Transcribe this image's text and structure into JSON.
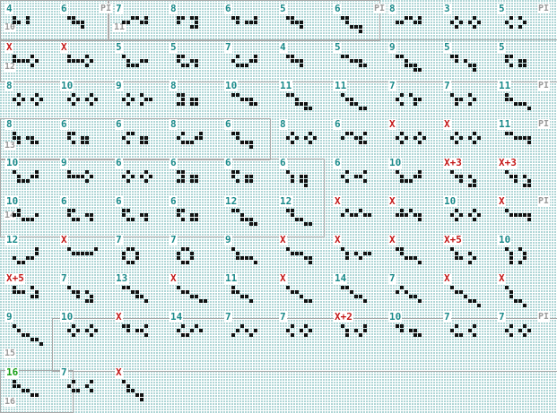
{
  "board": {
    "colors": {
      "teal": "#1a8a8a",
      "red": "#c41818",
      "green": "#17a017",
      "group_border": "#a8a8a8",
      "cell_fill": "#111111",
      "grid_dot": "#3a9a9a"
    },
    "groups": [
      "10",
      "11",
      "12",
      "13",
      "14",
      "15",
      "16"
    ],
    "rows": [
      [
        {
          "label": "4",
          "color": "teal",
          "pattern": "p2"
        },
        {
          "label": "6",
          "color": "teal",
          "pattern": "p1",
          "pl": "PI"
        },
        {
          "label": "7",
          "color": "teal",
          "pattern": "p3"
        },
        {
          "label": "8",
          "color": "teal",
          "pattern": "p4"
        },
        {
          "label": "6",
          "color": "teal",
          "pattern": "p5"
        },
        {
          "label": "5",
          "color": "teal",
          "pattern": "p1"
        },
        {
          "label": "6",
          "color": "teal",
          "pattern": "p6",
          "pl": "PI"
        },
        {
          "label": "8",
          "color": "teal",
          "pattern": "p3"
        },
        {
          "label": "3",
          "color": "teal",
          "pattern": "p7"
        },
        {
          "label": "5",
          "color": "teal",
          "pattern": "p8",
          "pl": "PI"
        }
      ],
      [
        {
          "label": "X",
          "color": "red",
          "pattern": "p9"
        },
        {
          "label": "X",
          "color": "red",
          "pattern": "p9"
        },
        {
          "label": "5",
          "color": "teal",
          "pattern": "p10"
        },
        {
          "label": "5",
          "color": "teal",
          "pattern": "p11"
        },
        {
          "label": "7",
          "color": "teal",
          "pattern": "p12"
        },
        {
          "label": "4",
          "color": "teal",
          "pattern": "p1"
        },
        {
          "label": "5",
          "color": "teal",
          "pattern": "p13"
        },
        {
          "label": "9",
          "color": "teal",
          "pattern": "p14"
        },
        {
          "label": "5",
          "color": "teal",
          "pattern": "p15"
        },
        {
          "label": "5",
          "color": "teal",
          "pattern": "p16"
        }
      ],
      [
        {
          "label": "8",
          "color": "teal",
          "pattern": "p7"
        },
        {
          "label": "10",
          "color": "teal",
          "pattern": "p17"
        },
        {
          "label": "9",
          "color": "teal",
          "pattern": "p18"
        },
        {
          "label": "8",
          "color": "teal",
          "pattern": "p19"
        },
        {
          "label": "10",
          "color": "teal",
          "pattern": "p13"
        },
        {
          "label": "11",
          "color": "teal",
          "pattern": "p14"
        },
        {
          "label": "11",
          "color": "teal",
          "pattern": "p20"
        },
        {
          "label": "7",
          "color": "teal",
          "pattern": "p21"
        },
        {
          "label": "7",
          "color": "teal",
          "pattern": "p22"
        },
        {
          "label": "11",
          "color": "teal",
          "pattern": "p23",
          "pl": "PI"
        }
      ],
      [
        {
          "label": "8",
          "color": "teal",
          "pattern": "p24"
        },
        {
          "label": "6",
          "color": "teal",
          "pattern": "p16"
        },
        {
          "label": "6",
          "color": "teal",
          "pattern": "p25"
        },
        {
          "label": "8",
          "color": "teal",
          "pattern": "p12"
        },
        {
          "label": "6",
          "color": "teal",
          "pattern": "p6"
        },
        {
          "label": "8",
          "color": "teal",
          "pattern": "p7"
        },
        {
          "label": "6",
          "color": "teal",
          "pattern": "p26"
        },
        {
          "label": "X",
          "color": "red",
          "pattern": "p7"
        },
        {
          "label": "X",
          "color": "red",
          "pattern": "p17"
        },
        {
          "label": "11",
          "color": "teal",
          "pattern": "p27",
          "pl": "PI"
        }
      ],
      [
        {
          "label": "10",
          "color": "teal",
          "pattern": "p28"
        },
        {
          "label": "9",
          "color": "teal",
          "pattern": "p9"
        },
        {
          "label": "6",
          "color": "teal",
          "pattern": "p7"
        },
        {
          "label": "6",
          "color": "teal",
          "pattern": "p19"
        },
        {
          "label": "6",
          "color": "teal",
          "pattern": "p16"
        },
        {
          "label": "6",
          "color": "teal",
          "pattern": "p29"
        },
        {
          "label": "6",
          "color": "teal",
          "pattern": "p30"
        },
        {
          "label": "10",
          "color": "teal",
          "pattern": "p28"
        },
        {
          "label": "X+3",
          "color": "red",
          "pattern": "p31"
        },
        {
          "label": "X+3",
          "color": "red",
          "pattern": "p31"
        }
      ],
      [
        {
          "label": "10",
          "color": "teal",
          "pattern": "p32"
        },
        {
          "label": "6",
          "color": "teal",
          "pattern": "p33"
        },
        {
          "label": "6",
          "color": "teal",
          "pattern": "p33"
        },
        {
          "label": "6",
          "color": "teal",
          "pattern": "p16"
        },
        {
          "label": "12",
          "color": "teal",
          "pattern": "p14"
        },
        {
          "label": "12",
          "color": "teal",
          "pattern": "p34"
        },
        {
          "label": "X",
          "color": "red",
          "pattern": "p35"
        },
        {
          "label": "X",
          "color": "red",
          "pattern": "p36"
        },
        {
          "label": "10",
          "color": "teal",
          "pattern": "p17"
        },
        {
          "label": "X",
          "color": "red",
          "pattern": "p37",
          "pl": "PI"
        }
      ],
      [
        {
          "label": "12",
          "color": "teal",
          "pattern": "p38"
        },
        {
          "label": "X",
          "color": "red",
          "pattern": "p39"
        },
        {
          "label": "7",
          "color": "teal",
          "pattern": "p40"
        },
        {
          "label": "7",
          "color": "teal",
          "pattern": "p40"
        },
        {
          "label": "9",
          "color": "teal",
          "pattern": "p41"
        },
        {
          "label": "X",
          "color": "red",
          "pattern": "p42"
        },
        {
          "label": "X",
          "color": "red",
          "pattern": "p43"
        },
        {
          "label": "X",
          "color": "red",
          "pattern": "p44"
        },
        {
          "label": "X+5",
          "color": "red",
          "pattern": "p45"
        },
        {
          "label": "10",
          "color": "teal",
          "pattern": "p46"
        }
      ],
      [
        {
          "label": "X+5",
          "color": "red",
          "pattern": "p47"
        },
        {
          "label": "7",
          "color": "teal",
          "pattern": "p48"
        },
        {
          "label": "13",
          "color": "teal",
          "pattern": "p49"
        },
        {
          "label": "X",
          "color": "red",
          "pattern": "p50"
        },
        {
          "label": "11",
          "color": "teal",
          "pattern": "p51"
        },
        {
          "label": "X",
          "color": "red",
          "pattern": "p52"
        },
        {
          "label": "14",
          "color": "teal",
          "pattern": "p53"
        },
        {
          "label": "7",
          "color": "teal",
          "pattern": "p54"
        },
        {
          "label": "X",
          "color": "red",
          "pattern": "p55"
        },
        {
          "label": "X",
          "color": "red",
          "pattern": "p56"
        }
      ],
      [
        {
          "label": "9",
          "color": "teal",
          "pattern": "p57"
        },
        {
          "label": "10",
          "color": "teal",
          "pattern": "p58"
        },
        {
          "label": "X",
          "color": "red",
          "pattern": "p59"
        },
        {
          "label": "14",
          "color": "teal",
          "pattern": "p60"
        },
        {
          "label": "7",
          "color": "teal",
          "pattern": "p61"
        },
        {
          "label": "7",
          "color": "teal",
          "pattern": "p62"
        },
        {
          "label": "X+2",
          "color": "red",
          "pattern": "p63"
        },
        {
          "label": "10",
          "color": "teal",
          "pattern": "p64"
        },
        {
          "label": "7",
          "color": "teal",
          "pattern": "p65"
        },
        {
          "label": "7",
          "color": "teal",
          "pattern": "p66",
          "pl": "PI"
        }
      ],
      [
        {
          "label": "16",
          "color": "green",
          "pattern": "p67"
        },
        {
          "label": "7",
          "color": "teal",
          "pattern": "p68"
        },
        {
          "label": "X",
          "color": "red",
          "pattern": "p69"
        }
      ]
    ]
  }
}
